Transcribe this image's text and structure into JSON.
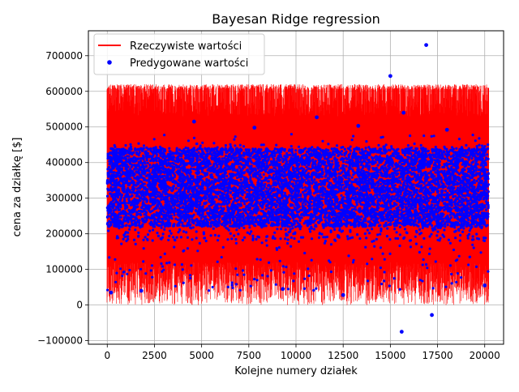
{
  "chart_data": {
    "type": "scatter",
    "title": "Bayesan Ridge regression",
    "xlabel": "Kolejne numery działek",
    "ylabel": "cena za działkę [$]",
    "xlim": [
      -1000,
      21000
    ],
    "ylim": [
      -110000,
      770000
    ],
    "x_ticks": [
      0,
      2500,
      5000,
      7500,
      10000,
      12500,
      15000,
      17500,
      20000
    ],
    "x_tick_labels": [
      "0",
      "2500",
      "5000",
      "7500",
      "10000",
      "12500",
      "15000",
      "17500",
      "20000"
    ],
    "y_ticks": [
      -100000,
      0,
      100000,
      200000,
      300000,
      400000,
      500000,
      600000,
      700000
    ],
    "y_tick_labels": [
      "−100000",
      "0",
      "100000",
      "200000",
      "300000",
      "400000",
      "500000",
      "600000",
      "700000"
    ],
    "grid": true,
    "legend_position": "top-left",
    "series": [
      {
        "name": "Rzeczywiste wartości",
        "kind": "line",
        "color": "#ff0000",
        "n_points": 20200,
        "dense_band": [
          40000,
          620000
        ],
        "min_extent": 0,
        "max_extent": 630000,
        "sample_x": [
          0,
          1000,
          2000,
          3000,
          4000,
          5000,
          5800,
          6000,
          7000,
          8000,
          9000,
          10000,
          11000,
          12000,
          13000,
          14000,
          15000,
          16000,
          17000,
          18000,
          19000,
          20000,
          20200
        ],
        "sample_y": [
          40000,
          620000,
          0,
          615000,
          30000,
          625000,
          560000,
          600000,
          20000,
          610000,
          10000,
          620000,
          30000,
          615000,
          15000,
          620000,
          20000,
          625000,
          40000,
          610000,
          10000,
          600000,
          130000
        ]
      },
      {
        "name": "Predygowane wartości",
        "kind": "points",
        "color": "#0000ff",
        "n_points": 20200,
        "dense_band": [
          180000,
          450000
        ],
        "core_band": [
          220000,
          440000
        ],
        "outliers": [
          {
            "x": 15000,
            "y": 643000
          },
          {
            "x": 16900,
            "y": 730000
          },
          {
            "x": 15600,
            "y": -75000
          },
          {
            "x": 17200,
            "y": -28000
          },
          {
            "x": 15700,
            "y": 540000
          },
          {
            "x": 11100,
            "y": 527000
          },
          {
            "x": 4600,
            "y": 515000
          },
          {
            "x": 13300,
            "y": 503000
          },
          {
            "x": 7800,
            "y": 498000
          },
          {
            "x": 18000,
            "y": 492000
          },
          {
            "x": 200,
            "y": 35000
          },
          {
            "x": 1800,
            "y": 40000
          },
          {
            "x": 12500,
            "y": 28000
          },
          {
            "x": 20000,
            "y": 55000
          },
          {
            "x": 9300,
            "y": 45000
          }
        ]
      }
    ]
  }
}
